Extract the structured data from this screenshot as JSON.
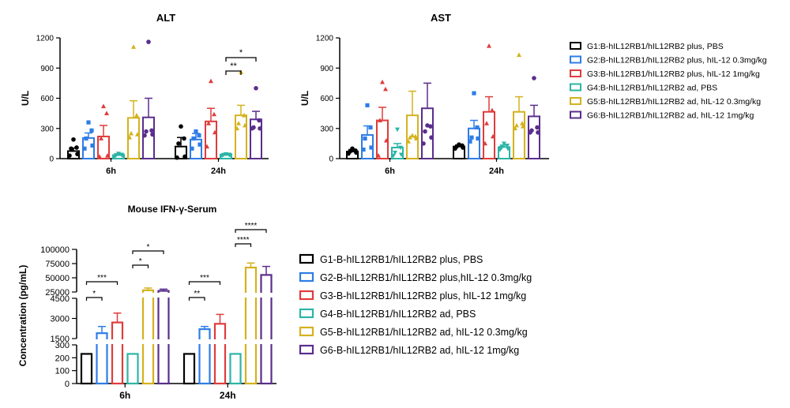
{
  "colors": {
    "G1": "#000000",
    "G2": "#2e7de6",
    "G3": "#e03c3c",
    "G4": "#2bb5a6",
    "G5": "#d4b21e",
    "G6": "#5a2e8c"
  },
  "chart_data": [
    {
      "type": "bar",
      "title": "ALT",
      "ylabel": "U/L",
      "categories": [
        "6h",
        "24h"
      ],
      "ylim": [
        0,
        1200
      ],
      "yticks": [
        "0",
        "300",
        "600",
        "900",
        "1200"
      ],
      "error_bars": true,
      "series": [
        {
          "key": "G1",
          "values": [
            75,
            120
          ],
          "err": [
            30,
            90
          ],
          "points": [
            [
              30,
              45,
              100,
              110,
              190
            ],
            [
              10,
              20,
              150,
              200,
              320
            ]
          ]
        },
        {
          "key": "G2",
          "values": [
            205,
            190
          ],
          "err": [
            50,
            60
          ],
          "points": [
            [
              100,
              130,
              200,
              280,
              360
            ],
            [
              100,
              140,
              200,
              230,
              270
            ]
          ]
        },
        {
          "key": "G3",
          "values": [
            220,
            370
          ],
          "err": [
            110,
            130
          ],
          "points": [
            [
              20,
              30,
              200,
              450,
              520
            ],
            [
              120,
              260,
              350,
              440,
              770
            ]
          ]
        },
        {
          "key": "G4",
          "values": [
            35,
            38
          ],
          "err": [
            10,
            8
          ],
          "points": [
            [
              20,
              30,
              35,
              40,
              50
            ],
            [
              30,
              35,
              38,
              40,
              45
            ]
          ]
        },
        {
          "key": "G5",
          "values": [
            405,
            430
          ],
          "err": [
            170,
            100
          ],
          "points": [
            [
              210,
              240,
              250,
              430,
              1110
            ],
            [
              300,
              330,
              350,
              430,
              860
            ]
          ]
        },
        {
          "key": "G6",
          "values": [
            410,
            390
          ],
          "err": [
            190,
            80
          ],
          "points": [
            [
              230,
              240,
              270,
              280,
              1160
            ],
            [
              300,
              300,
              310,
              380,
              700
            ]
          ]
        }
      ],
      "significance": [
        {
          "label": "**",
          "category": "24h",
          "from": "G4",
          "to": "G5"
        },
        {
          "label": "*",
          "category": "24h",
          "from": "G4",
          "to": "G6"
        }
      ]
    },
    {
      "type": "bar",
      "title": "AST",
      "ylabel": "U/L",
      "categories": [
        "6h",
        "24h"
      ],
      "ylim": [
        0,
        1200
      ],
      "yticks": [
        "0",
        "300",
        "600",
        "900",
        "1200"
      ],
      "error_bars": true,
      "series": [
        {
          "key": "G1",
          "values": [
            70,
            120
          ],
          "err": [
            20,
            15
          ],
          "points": [
            [
              50,
              60,
              70,
              80,
              100
            ],
            [
              100,
              110,
              120,
              130,
              140
            ]
          ]
        },
        {
          "key": "G2",
          "values": [
            235,
            300
          ],
          "err": [
            90,
            80
          ],
          "points": [
            [
              90,
              110,
              200,
              310,
              530
            ],
            [
              170,
              200,
              210,
              310,
              650
            ]
          ]
        },
        {
          "key": "G3",
          "values": [
            380,
            465
          ],
          "err": [
            130,
            150
          ],
          "points": [
            [
              30,
              180,
              380,
              690,
              760
            ],
            [
              150,
              220,
              350,
              480,
              1120
            ]
          ]
        },
        {
          "key": "G4",
          "values": [
            110,
            115
          ],
          "err": [
            40,
            20
          ],
          "points": [
            [
              30,
              40,
              60,
              110,
              290
            ],
            [
              90,
              100,
              110,
              130,
              150
            ]
          ]
        },
        {
          "key": "G5",
          "values": [
            430,
            465
          ],
          "err": [
            240,
            150
          ],
          "points": [
            [
              170,
              200,
              210,
              220,
              230
            ],
            [
              300,
              320,
              330,
              350,
              1030
            ]
          ]
        },
        {
          "key": "G6",
          "values": [
            500,
            420
          ],
          "err": [
            250,
            110
          ],
          "points": [
            [
              150,
              210,
              270,
              320,
              330
            ],
            [
              260,
              260,
              280,
              310,
              800
            ]
          ]
        }
      ]
    },
    {
      "type": "bar",
      "title": "Mouse IFN-γ-Serum",
      "ylabel": "Concentration (pg/mL)",
      "categories": [
        "6h",
        "24h"
      ],
      "broken_axis": true,
      "yticks_low": [
        "0",
        "100",
        "200",
        "300"
      ],
      "yticks_mid": [
        "1500",
        "3000",
        "4500"
      ],
      "yticks_high": [
        "25000",
        "50000",
        "75000",
        "100000"
      ],
      "error_bars": true,
      "series": [
        {
          "key": "G1",
          "values": [
            230,
            230
          ],
          "err": [
            0,
            0
          ]
        },
        {
          "key": "G2",
          "values": [
            1900,
            2200
          ],
          "err": [
            500,
            200
          ]
        },
        {
          "key": "G3",
          "values": [
            2700,
            2600
          ],
          "err": [
            700,
            700
          ]
        },
        {
          "key": "G4",
          "values": [
            230,
            230
          ],
          "err": [
            0,
            0
          ]
        },
        {
          "key": "G5",
          "values": [
            28000,
            68000
          ],
          "err": [
            4000,
            8000
          ]
        },
        {
          "key": "G6",
          "values": [
            27000,
            55000
          ],
          "err": [
            3000,
            15000
          ]
        }
      ],
      "significance": [
        {
          "label": "*",
          "category": "6h",
          "from": "G1",
          "to": "G2"
        },
        {
          "label": "***",
          "category": "6h",
          "from": "G1",
          "to": "G3"
        },
        {
          "label": "*",
          "category": "6h",
          "from": "G4",
          "to": "G5"
        },
        {
          "label": "*",
          "category": "6h",
          "from": "G4",
          "to": "G6"
        },
        {
          "label": "**",
          "category": "24h",
          "from": "G1",
          "to": "G2"
        },
        {
          "label": "***",
          "category": "24h",
          "from": "G1",
          "to": "G3"
        },
        {
          "label": "****",
          "category": "24h",
          "from": "G4",
          "to": "G5"
        },
        {
          "label": "****",
          "category": "24h",
          "from": "G4",
          "to": "G6"
        }
      ]
    }
  ],
  "legend_top": {
    "placement": "right",
    "entries": [
      {
        "key": "G1",
        "label": "G1:B-hIL12RB1/hIL12RB2 plus, PBS"
      },
      {
        "key": "G2",
        "label": "G2:B-hIL12RB1/hIL12RB2 plus, hIL-12 0.3mg/kg"
      },
      {
        "key": "G3",
        "label": "G3:B-hIL12RB1/hIL12RB2 plus, hIL-12 1mg/kg"
      },
      {
        "key": "G4",
        "label": "G4:B-hIL12RB1/hIL12RB2 ad, PBS"
      },
      {
        "key": "G5",
        "label": "G5:B-hIL12RB1/hIL12RB2 ad, hIL-12 0.3mg/kg"
      },
      {
        "key": "G6",
        "label": "G6:B-hIL12RB1/hIL12RB2 ad, hIL-12 1mg/kg"
      }
    ]
  },
  "legend_bottom": {
    "placement": "right",
    "entries": [
      {
        "key": "G1",
        "label": "G1-B-hIL12RB1/hIL12RB2 plus, PBS"
      },
      {
        "key": "G2",
        "label": "G2-B-hIL12RB1/hIL12RB2 plus,hIL-12 0.3mg/kg"
      },
      {
        "key": "G3",
        "label": "G3-B-hIL12RB1/hIL12RB2 plus, hIL-12 1mg/kg"
      },
      {
        "key": "G4",
        "label": "G4-B-hIL12RB1/hIL12RB2 ad, PBS"
      },
      {
        "key": "G5",
        "label": "G5-B-hIL12RB1/hIL12RB2 ad, hIL-12 0.3mg/kg"
      },
      {
        "key": "G6",
        "label": "G6-B-hIL12RB1/hIL12RB2 ad, hIL-12 1mg/kg"
      }
    ]
  }
}
